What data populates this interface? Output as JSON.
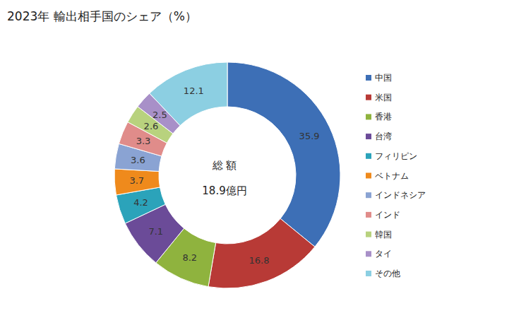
{
  "chart_data": {
    "type": "pie",
    "title": "2023年 輸出相手国のシェア（%）",
    "annotations": [
      "総 額",
      "18.9億円"
    ],
    "categories": [
      "中国",
      "米国",
      "香港",
      "台湾",
      "フィリピン",
      "ベトナム",
      "インドネシア",
      "インド",
      "韓国",
      "タイ",
      "その他"
    ],
    "values": [
      35.9,
      16.8,
      8.2,
      7.1,
      4.2,
      3.7,
      3.6,
      3.3,
      2.6,
      2.5,
      12.1
    ],
    "colors": [
      "#3d6fb6",
      "#b83a36",
      "#8fb33e",
      "#6b4b98",
      "#2ba3ba",
      "#ef8a1c",
      "#8aa3d3",
      "#e08c8a",
      "#b8d27e",
      "#a890c8",
      "#8ccfe2"
    ],
    "data_labels": true,
    "legend": "right"
  }
}
